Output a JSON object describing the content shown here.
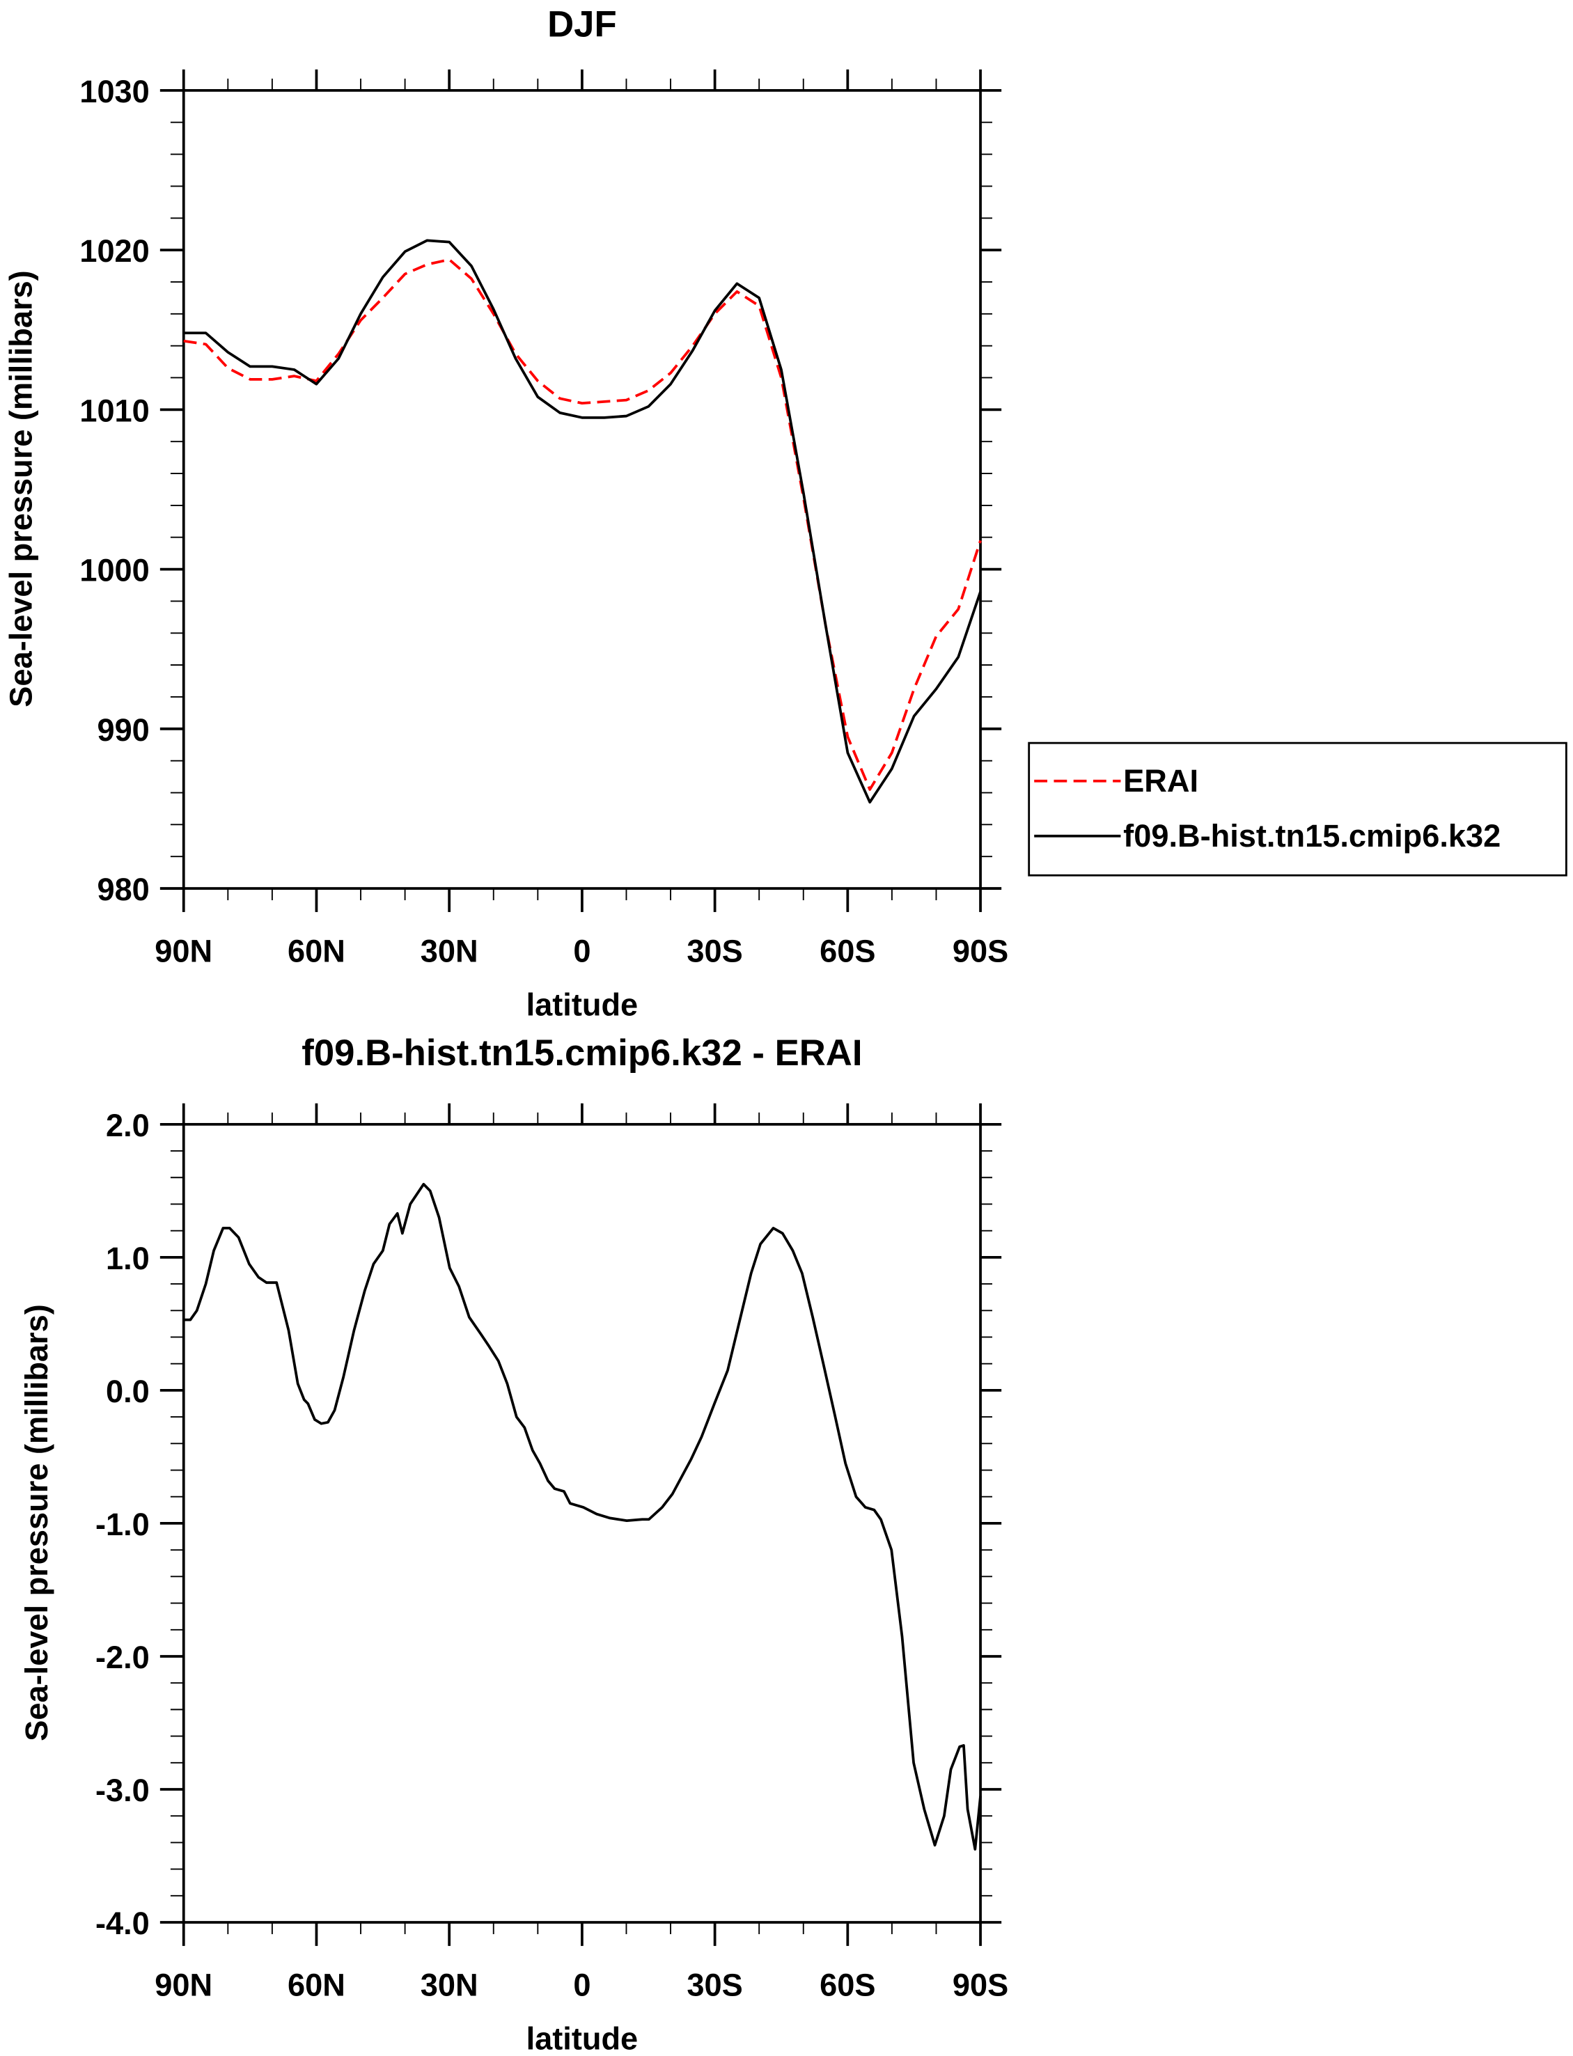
{
  "chart_data": [
    {
      "type": "line",
      "title": "DJF",
      "xlabel": "latitude",
      "ylabel": "Sea-level pressure (millibars)",
      "xlim": [
        90,
        -90
      ],
      "ylim": [
        980,
        1030
      ],
      "xticks": [
        90,
        60,
        30,
        0,
        -30,
        -60,
        -90
      ],
      "xtick_labels": [
        "90N",
        "60N",
        "30N",
        "0",
        "30S",
        "60S",
        "90S"
      ],
      "yticks": [
        980,
        990,
        1000,
        1010,
        1020,
        1030
      ],
      "ytick_labels": [
        "980",
        "990",
        "1000",
        "1010",
        "1020",
        "1030"
      ],
      "legend_position": "right",
      "x": [
        90,
        85,
        80,
        75,
        70,
        65,
        60,
        55,
        50,
        45,
        40,
        35,
        30,
        25,
        20,
        15,
        10,
        5,
        0,
        -5,
        -10,
        -15,
        -20,
        -25,
        -30,
        -35,
        -40,
        -45,
        -50,
        -55,
        -60,
        -65,
        -70,
        -75,
        -80,
        -85,
        -90
      ],
      "series": [
        {
          "name": "ERAI",
          "color": "#ff0000",
          "style": "dashed",
          "values": [
            1014.3,
            1014.1,
            1012.6,
            1011.9,
            1011.9,
            1012.1,
            1011.8,
            1013.5,
            1015.6,
            1017.0,
            1018.5,
            1019.1,
            1019.4,
            1018.2,
            1016.0,
            1013.5,
            1011.8,
            1010.7,
            1010.4,
            1010.5,
            1010.6,
            1011.2,
            1012.3,
            1014.0,
            1016.0,
            1017.4,
            1016.5,
            1012.0,
            1004.5,
            996.5,
            989.5,
            986.2,
            988.5,
            992.5,
            995.8,
            997.5,
            1001.8
          ]
        },
        {
          "name": "f09.B-hist.tn15.cmip6.k32",
          "color": "#000000",
          "style": "solid",
          "values": [
            1014.8,
            1014.8,
            1013.6,
            1012.7,
            1012.7,
            1012.5,
            1011.6,
            1013.2,
            1016.0,
            1018.3,
            1019.9,
            1020.6,
            1020.5,
            1019.0,
            1016.3,
            1013.2,
            1010.8,
            1009.8,
            1009.5,
            1009.5,
            1009.6,
            1010.2,
            1011.6,
            1013.7,
            1016.2,
            1017.9,
            1017.0,
            1012.5,
            1004.8,
            996.5,
            988.5,
            985.4,
            987.5,
            990.8,
            992.5,
            994.5,
            998.6
          ]
        }
      ]
    },
    {
      "type": "line",
      "title": "f09.B-hist.tn15.cmip6.k32 - ERAI",
      "xlabel": "latitude",
      "ylabel": "Sea-level pressure (millibars)",
      "xlim": [
        90,
        -90
      ],
      "ylim": [
        -4.0,
        2.0
      ],
      "xticks": [
        90,
        60,
        30,
        0,
        -30,
        -60,
        -90
      ],
      "xtick_labels": [
        "90N",
        "60N",
        "30N",
        "0",
        "30S",
        "60S",
        "90S"
      ],
      "yticks": [
        -4,
        -3,
        -2,
        -1,
        0,
        1,
        2
      ],
      "ytick_labels": [
        "-4.0",
        "-3.0",
        "-2.0",
        "-1.0",
        "0.0",
        "1.0",
        "2.0"
      ],
      "x": [
        90,
        88.5,
        87.0,
        85.0,
        83.2,
        81.1,
        79.6,
        77.6,
        75.2,
        73.1,
        71.3,
        69.0,
        66.3,
        64.2,
        62.8,
        61.9,
        60.4,
        58.9,
        57.4,
        55.9,
        53.9,
        51.5,
        49.1,
        47.1,
        45.0,
        43.5,
        41.7,
        40.6,
        38.8,
        35.8,
        34.3,
        32.3,
        29.9,
        27.8,
        25.5,
        22.8,
        21.0,
        18.9,
        16.9,
        14.8,
        13.0,
        11.2,
        9.5,
        7.7,
        6.2,
        4.1,
        2.7,
        -0.3,
        -3.3,
        -6.2,
        -10.1,
        -13.6,
        -15.1,
        -18.1,
        -20.4,
        -22.5,
        -24.6,
        -27.0,
        -29.9,
        -32.9,
        -35.8,
        -38.2,
        -40.3,
        -43.2,
        -45.3,
        -47.6,
        -49.7,
        -52.1,
        -54.5,
        -57.2,
        -59.5,
        -61.9,
        -64.0,
        -66.0,
        -67.5,
        -69.9,
        -72.3,
        -74.9,
        -77.3,
        -79.7,
        -81.8,
        -83.3,
        -85.3,
        -86.2,
        -87.1,
        -88.8,
        -90
      ],
      "series": [
        {
          "name": "f09.B-hist.tn15.cmip6.k32 - ERAI",
          "color": "#000000",
          "style": "solid",
          "values": [
            0.53,
            0.53,
            0.6,
            0.8,
            1.05,
            1.22,
            1.22,
            1.15,
            0.95,
            0.85,
            0.81,
            0.81,
            0.45,
            0.05,
            -0.07,
            -0.1,
            -0.22,
            -0.25,
            -0.24,
            -0.15,
            0.1,
            0.45,
            0.75,
            0.95,
            1.05,
            1.25,
            1.33,
            1.18,
            1.4,
            1.55,
            1.5,
            1.3,
            0.92,
            0.78,
            0.55,
            0.42,
            0.33,
            0.22,
            0.05,
            -0.2,
            -0.28,
            -0.45,
            -0.55,
            -0.68,
            -0.74,
            -0.76,
            -0.85,
            -0.88,
            -0.93,
            -0.96,
            -0.98,
            -0.97,
            -0.97,
            -0.88,
            -0.78,
            -0.65,
            -0.52,
            -0.35,
            -0.1,
            0.15,
            0.55,
            0.88,
            1.1,
            1.22,
            1.18,
            1.05,
            0.88,
            0.55,
            0.2,
            -0.2,
            -0.55,
            -0.8,
            -0.88,
            -0.9,
            -0.97,
            -1.2,
            -1.85,
            -2.8,
            -3.15,
            -3.42,
            -3.2,
            -2.85,
            -2.68,
            -2.67,
            -3.15,
            -3.45,
            -3.05
          ]
        }
      ]
    }
  ]
}
